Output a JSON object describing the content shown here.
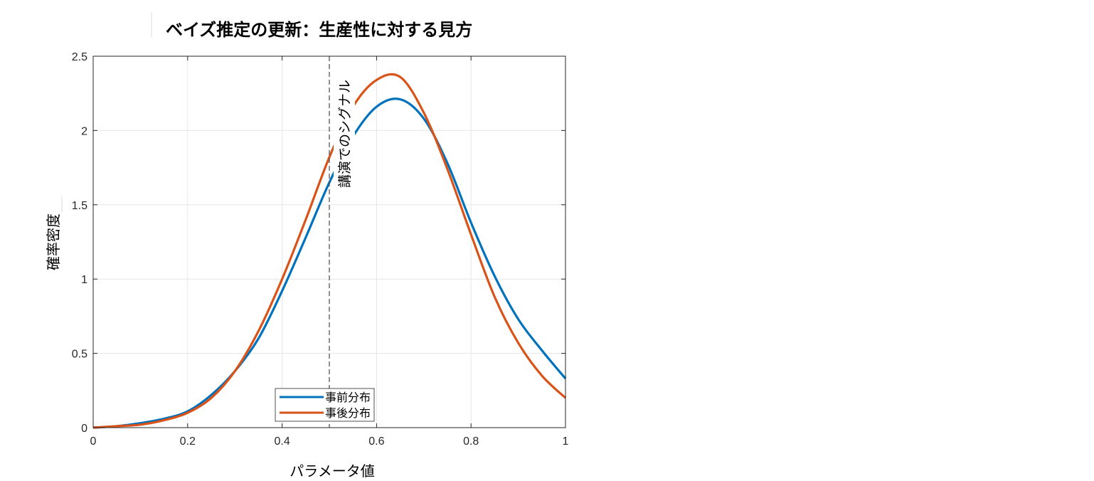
{
  "chart_data": {
    "type": "line",
    "title": "ベイズ推定の更新：生産性に対する見方",
    "xlabel": "パラメータ値",
    "ylabel": "確率密度",
    "xlim": [
      0,
      1
    ],
    "ylim": [
      0,
      2.5
    ],
    "xticks": [
      "0",
      "0.2",
      "0.4",
      "0.6",
      "0.8",
      "1"
    ],
    "yticks": [
      "0",
      "0.5",
      "1",
      "1.5",
      "2",
      "2.5"
    ],
    "grid": true,
    "legend_position": "bottom-center",
    "annotation": {
      "text": "講演でのシグナル",
      "x": 0.5,
      "style": "dashed-vertical-line"
    },
    "x": [
      0,
      0.05,
      0.1,
      0.15,
      0.2,
      0.25,
      0.3,
      0.35,
      0.4,
      0.45,
      0.5,
      0.55,
      0.6,
      0.65,
      0.7,
      0.75,
      0.8,
      0.85,
      0.9,
      0.95,
      1.0
    ],
    "series": [
      {
        "name": "事前分布",
        "color": "#0072BD",
        "values": [
          0.0,
          0.01,
          0.03,
          0.06,
          0.11,
          0.22,
          0.38,
          0.6,
          0.92,
          1.28,
          1.65,
          1.96,
          2.16,
          2.21,
          2.08,
          1.78,
          1.38,
          1.02,
          0.73,
          0.52,
          0.33
        ]
      },
      {
        "name": "事後分布",
        "color": "#D95319",
        "values": [
          0.0,
          0.01,
          0.02,
          0.05,
          0.1,
          0.2,
          0.38,
          0.65,
          1.0,
          1.4,
          1.82,
          2.16,
          2.34,
          2.36,
          2.12,
          1.74,
          1.3,
          0.88,
          0.57,
          0.35,
          0.2
        ]
      }
    ]
  }
}
